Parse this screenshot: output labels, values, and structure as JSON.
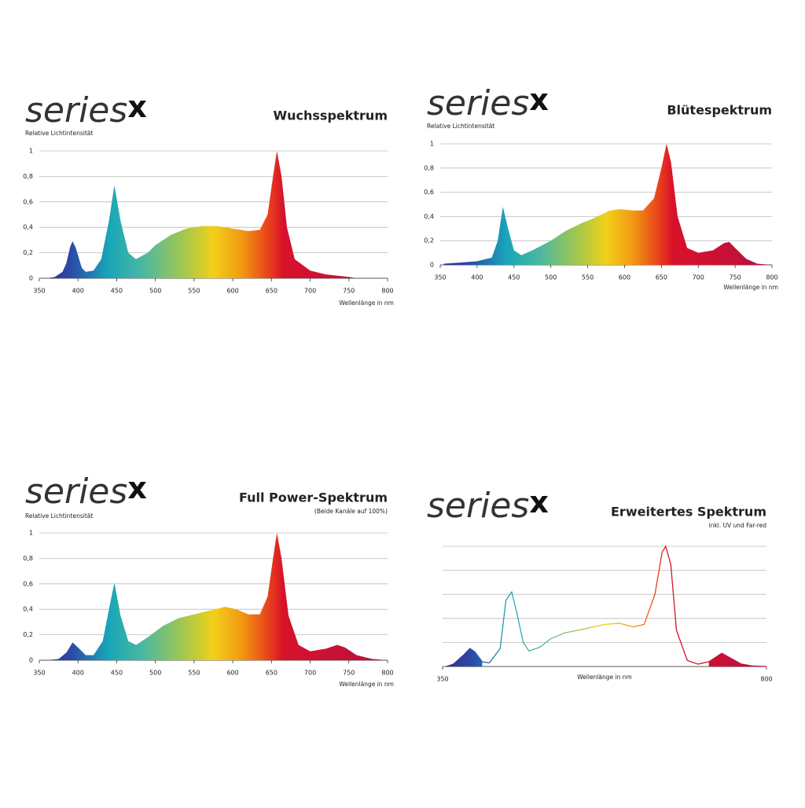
{
  "chart_data": [
    {
      "type": "area",
      "brand": "series",
      "brand_mark": "x",
      "title": "Wuchsspektrum",
      "ylabel": "Relative Lichtintensität",
      "xlabel": "Wellenlänge in nm",
      "x": [
        360,
        370,
        380,
        385,
        390,
        393,
        397,
        405,
        410,
        420,
        430,
        440,
        447,
        455,
        465,
        475,
        490,
        500,
        520,
        540,
        560,
        580,
        600,
        620,
        635,
        645,
        652,
        657,
        663,
        670,
        680,
        700,
        720,
        750,
        760
      ],
      "values": [
        0,
        0.01,
        0.05,
        0.12,
        0.25,
        0.29,
        0.24,
        0.08,
        0.05,
        0.06,
        0.15,
        0.45,
        0.73,
        0.45,
        0.2,
        0.15,
        0.2,
        0.26,
        0.34,
        0.39,
        0.41,
        0.41,
        0.39,
        0.37,
        0.38,
        0.5,
        0.8,
        1.0,
        0.8,
        0.4,
        0.15,
        0.06,
        0.03,
        0.01,
        0
      ],
      "xlim": [
        350,
        800
      ],
      "xticks": [
        350,
        400,
        450,
        500,
        550,
        600,
        650,
        700,
        750,
        800
      ],
      "ylim": [
        0,
        1
      ],
      "yticks": [
        0,
        {
          "value": 0.2,
          "label": "0,2"
        },
        {
          "value": 0.4,
          "label": "0,4"
        },
        {
          "value": 0.6,
          "label": "0,6"
        },
        {
          "value": 0.8,
          "label": "0,8"
        },
        1
      ],
      "grid": true
    },
    {
      "type": "area",
      "brand": "series",
      "brand_mark": "x",
      "title": "Blütespektrum",
      "ylabel": "Relative Lichtintensität",
      "xlabel": "Wellenlänge in nm",
      "x": [
        355,
        380,
        400,
        420,
        428,
        435,
        442,
        450,
        460,
        475,
        500,
        520,
        540,
        560,
        580,
        595,
        610,
        625,
        640,
        650,
        657,
        663,
        672,
        685,
        700,
        720,
        735,
        742,
        750,
        765,
        780,
        800
      ],
      "values": [
        0.01,
        0.02,
        0.03,
        0.06,
        0.2,
        0.48,
        0.3,
        0.12,
        0.08,
        0.12,
        0.2,
        0.28,
        0.34,
        0.39,
        0.45,
        0.46,
        0.45,
        0.45,
        0.55,
        0.8,
        1.0,
        0.85,
        0.4,
        0.14,
        0.1,
        0.12,
        0.18,
        0.19,
        0.14,
        0.05,
        0.01,
        0
      ],
      "xlim": [
        350,
        800
      ],
      "xticks": [
        350,
        400,
        450,
        500,
        550,
        600,
        650,
        700,
        750,
        800
      ],
      "ylim": [
        0,
        1
      ],
      "yticks": [
        0,
        {
          "value": 0.2,
          "label": "0,2"
        },
        {
          "value": 0.4,
          "label": "0,4"
        },
        {
          "value": 0.6,
          "label": "0,6"
        },
        {
          "value": 0.8,
          "label": "0,8"
        },
        1
      ],
      "grid": true
    },
    {
      "type": "area",
      "brand": "series",
      "brand_mark": "x",
      "title": "Full Power-Spektrum",
      "subtitle": "(Beide Kanäle auf 100%)",
      "ylabel": "Relative Lichtintensität",
      "xlabel": "Wellenlänge in nm",
      "x": [
        360,
        375,
        385,
        393,
        400,
        410,
        420,
        432,
        440,
        447,
        455,
        465,
        475,
        490,
        510,
        530,
        550,
        570,
        590,
        605,
        620,
        635,
        645,
        652,
        657,
        663,
        672,
        685,
        700,
        720,
        735,
        745,
        760,
        780,
        800
      ],
      "values": [
        0,
        0.01,
        0.06,
        0.14,
        0.1,
        0.04,
        0.04,
        0.15,
        0.4,
        0.61,
        0.35,
        0.15,
        0.12,
        0.18,
        0.27,
        0.33,
        0.36,
        0.39,
        0.42,
        0.4,
        0.36,
        0.36,
        0.5,
        0.8,
        1.0,
        0.8,
        0.35,
        0.12,
        0.07,
        0.09,
        0.12,
        0.1,
        0.04,
        0.01,
        0
      ],
      "xlim": [
        350,
        800
      ],
      "xticks": [
        350,
        400,
        450,
        500,
        550,
        600,
        650,
        700,
        750,
        800
      ],
      "ylim": [
        0,
        1
      ],
      "yticks": [
        0,
        {
          "value": 0.2,
          "label": "0,2"
        },
        {
          "value": 0.4,
          "label": "0,4"
        },
        {
          "value": 0.6,
          "label": "0,6"
        },
        {
          "value": 0.8,
          "label": "0,8"
        },
        1
      ],
      "grid": true
    },
    {
      "type": "line",
      "brand": "series",
      "brand_mark": "x",
      "title": "Erweitertes Spektrum",
      "subtitle": "inkl. UV und Far-red",
      "xlabel": "Wellenlänge in nm",
      "x": [
        355,
        365,
        380,
        388,
        395,
        405,
        415,
        430,
        438,
        446,
        453,
        462,
        470,
        485,
        500,
        520,
        545,
        575,
        595,
        615,
        630,
        645,
        655,
        660,
        667,
        675,
        690,
        705,
        720,
        738,
        750,
        765,
        780,
        800
      ],
      "values": [
        0,
        0.02,
        0.1,
        0.15,
        0.12,
        0.04,
        0.03,
        0.15,
        0.55,
        0.62,
        0.45,
        0.2,
        0.13,
        0.16,
        0.23,
        0.28,
        0.31,
        0.35,
        0.36,
        0.33,
        0.35,
        0.6,
        0.95,
        1.0,
        0.85,
        0.3,
        0.05,
        0.02,
        0.04,
        0.11,
        0.07,
        0.02,
        0.005,
        0
      ],
      "fill_below": 410,
      "fill_above": 710,
      "xlim": [
        350,
        800
      ],
      "xticks": [
        350,
        800
      ],
      "ylim": [
        0,
        1
      ],
      "ygrid": [
        0,
        0.2,
        0.4,
        0.6,
        0.8,
        1
      ]
    }
  ]
}
